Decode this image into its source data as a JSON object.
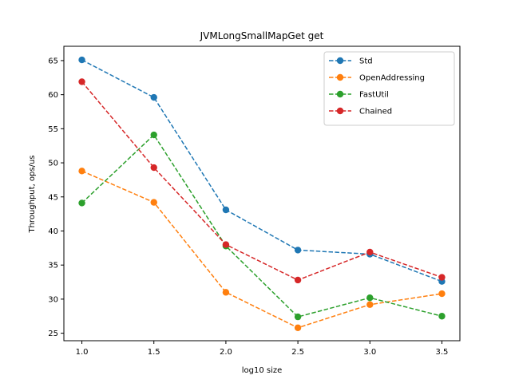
{
  "chart_data": {
    "type": "line",
    "title": "JVMLongSmallMapGet get",
    "xlabel": "log10 size",
    "ylabel": "Throughput, ops/us",
    "x": [
      1.0,
      1.5,
      2.0,
      2.5,
      3.0,
      3.5
    ],
    "x_ticks": [
      "1.0",
      "1.5",
      "2.0",
      "2.5",
      "3.0",
      "3.5"
    ],
    "y_ticks": [
      "25",
      "30",
      "35",
      "40",
      "45",
      "50",
      "55",
      "60",
      "65"
    ],
    "xlim": [
      0.875,
      3.625
    ],
    "ylim": [
      23.9,
      67.1
    ],
    "grid": false,
    "legend_position": "top-right",
    "series": [
      {
        "name": "Std",
        "color": "#1f77b4",
        "values": [
          65.1,
          59.6,
          43.1,
          37.2,
          36.6,
          32.6
        ]
      },
      {
        "name": "OpenAddressing",
        "color": "#ff7f0e",
        "values": [
          48.8,
          44.2,
          31.0,
          25.8,
          29.2,
          30.8
        ]
      },
      {
        "name": "FastUtil",
        "color": "#2ca02c",
        "values": [
          44.1,
          54.1,
          37.8,
          27.4,
          30.2,
          27.5
        ]
      },
      {
        "name": "Chained",
        "color": "#d62728",
        "values": [
          61.9,
          49.3,
          38.0,
          32.8,
          36.9,
          33.2
        ]
      }
    ]
  }
}
